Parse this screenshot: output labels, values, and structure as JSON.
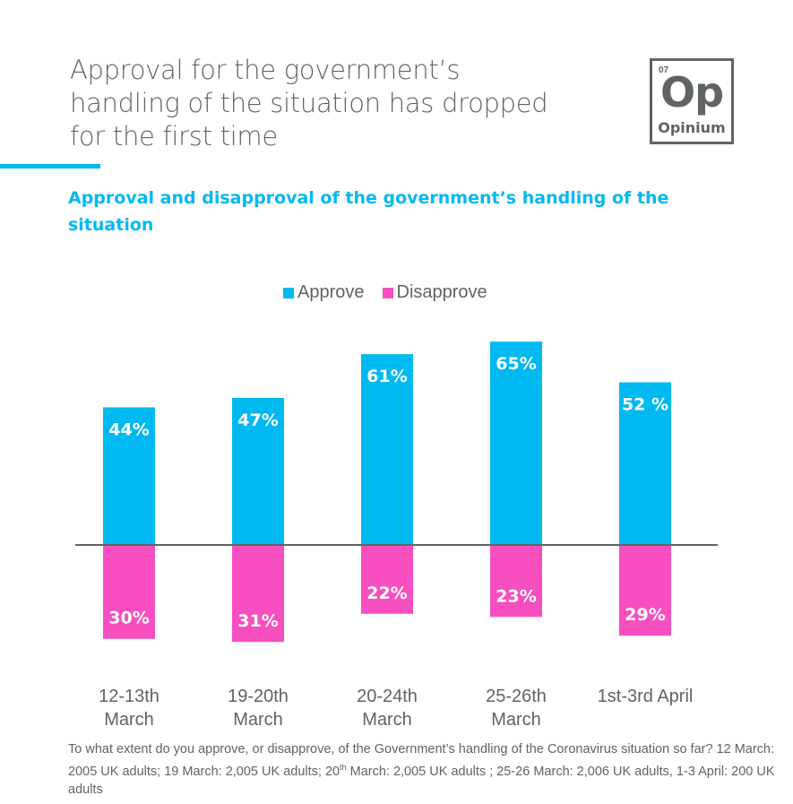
{
  "header": {
    "title": "Approval for the government’s handling of the situation has dropped for the first time",
    "logo": {
      "number": "07",
      "symbol": "Op",
      "name": "Opinium"
    }
  },
  "colors": {
    "approve": "#00b9f1",
    "disapprove": "#f74fbf",
    "axis": "#5f6462",
    "text": "#5f6462"
  },
  "chart_data": {
    "type": "bar",
    "title": "Approval and disapproval of the government’s handling of the situation",
    "categories": [
      "12-13th March",
      "19-20th March",
      "20-24th March",
      "25-26th March",
      "1st-3rd April"
    ],
    "series": [
      {
        "name": "Approve",
        "values": [
          44,
          47,
          61,
          65,
          52
        ],
        "labels": [
          "44%",
          "47%",
          "61%",
          "65%",
          "52 %"
        ]
      },
      {
        "name": "Disapprove",
        "values": [
          30,
          31,
          22,
          23,
          29
        ],
        "labels": [
          "30%",
          "31%",
          "22%",
          "23%",
          "29%"
        ]
      }
    ],
    "legend": {
      "position": "top",
      "items": [
        "Approve",
        "Disapprove"
      ]
    },
    "xlabel": "",
    "ylabel": "",
    "grid": false,
    "note": "Disapprove values plotted below the baseline"
  },
  "category_lines": [
    [
      "12-13th",
      "March"
    ],
    [
      "19-20th",
      "March"
    ],
    [
      "20-24th",
      "March"
    ],
    [
      "25-26th",
      "March"
    ],
    [
      "1st-3rd April",
      ""
    ]
  ],
  "footnote": {
    "part1": "To what extent do you approve, or disapprove, of the Government’s handling of the Coronavirus situation so far? 12 March: 2005 UK adults; 19 March: 2,005 UK adults; 20",
    "sup": "th",
    "part2": " March: 2,005 UK adults ; 25-26 March: 2,006 UK adults, 1-3 April: 200 UK adults"
  }
}
